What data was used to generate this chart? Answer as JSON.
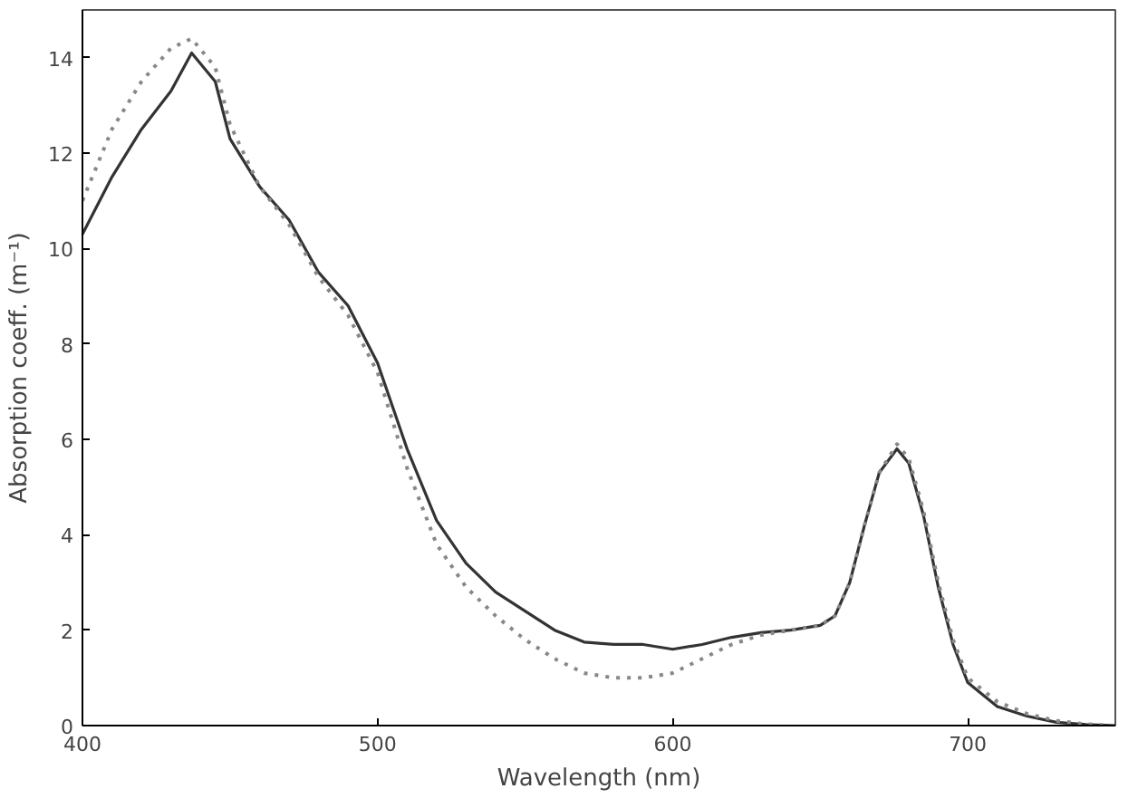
{
  "chart_data": {
    "type": "line",
    "xlabel": "Wavelength (nm)",
    "ylabel": "Absorption coeff. (m⁻¹)",
    "xlim": [
      400,
      750
    ],
    "ylim": [
      0,
      15
    ],
    "xticks": [
      400,
      500,
      600,
      700
    ],
    "yticks": [
      0,
      2,
      4,
      6,
      8,
      10,
      12,
      14
    ],
    "grid": false,
    "marker": "none",
    "series": [
      {
        "color": "#333333",
        "line_style": "solid",
        "x": [
          400,
          410,
          420,
          430,
          437,
          445,
          450,
          460,
          470,
          480,
          490,
          500,
          510,
          520,
          530,
          540,
          550,
          560,
          570,
          580,
          590,
          600,
          610,
          620,
          630,
          640,
          650,
          655,
          660,
          665,
          670,
          676,
          680,
          685,
          690,
          695,
          700,
          710,
          720,
          730,
          740,
          750
        ],
        "values": [
          10.3,
          11.5,
          12.5,
          13.3,
          14.1,
          13.5,
          12.3,
          11.3,
          10.6,
          9.5,
          8.8,
          7.6,
          5.8,
          4.3,
          3.4,
          2.8,
          2.4,
          2.0,
          1.75,
          1.7,
          1.7,
          1.6,
          1.7,
          1.85,
          1.95,
          2.0,
          2.1,
          2.3,
          3.0,
          4.2,
          5.3,
          5.8,
          5.5,
          4.4,
          2.9,
          1.7,
          0.9,
          0.4,
          0.2,
          0.07,
          0.02,
          0
        ]
      },
      {
        "color": "#888888",
        "line_style": "dotted",
        "x": [
          400,
          410,
          420,
          430,
          437,
          445,
          450,
          460,
          470,
          480,
          490,
          500,
          510,
          520,
          530,
          540,
          550,
          560,
          570,
          580,
          590,
          600,
          610,
          620,
          630,
          640,
          650,
          655,
          660,
          665,
          670,
          676,
          680,
          685,
          690,
          695,
          700,
          710,
          720,
          730,
          740,
          750
        ],
        "values": [
          11.0,
          12.5,
          13.5,
          14.2,
          14.4,
          13.8,
          12.6,
          11.3,
          10.5,
          9.4,
          8.6,
          7.4,
          5.4,
          3.8,
          2.9,
          2.3,
          1.8,
          1.4,
          1.1,
          1.0,
          1.0,
          1.1,
          1.4,
          1.7,
          1.9,
          2.0,
          2.1,
          2.3,
          3.0,
          4.2,
          5.3,
          5.9,
          5.6,
          4.5,
          3.0,
          1.8,
          1.0,
          0.5,
          0.25,
          0.1,
          0.03,
          0
        ]
      }
    ]
  }
}
